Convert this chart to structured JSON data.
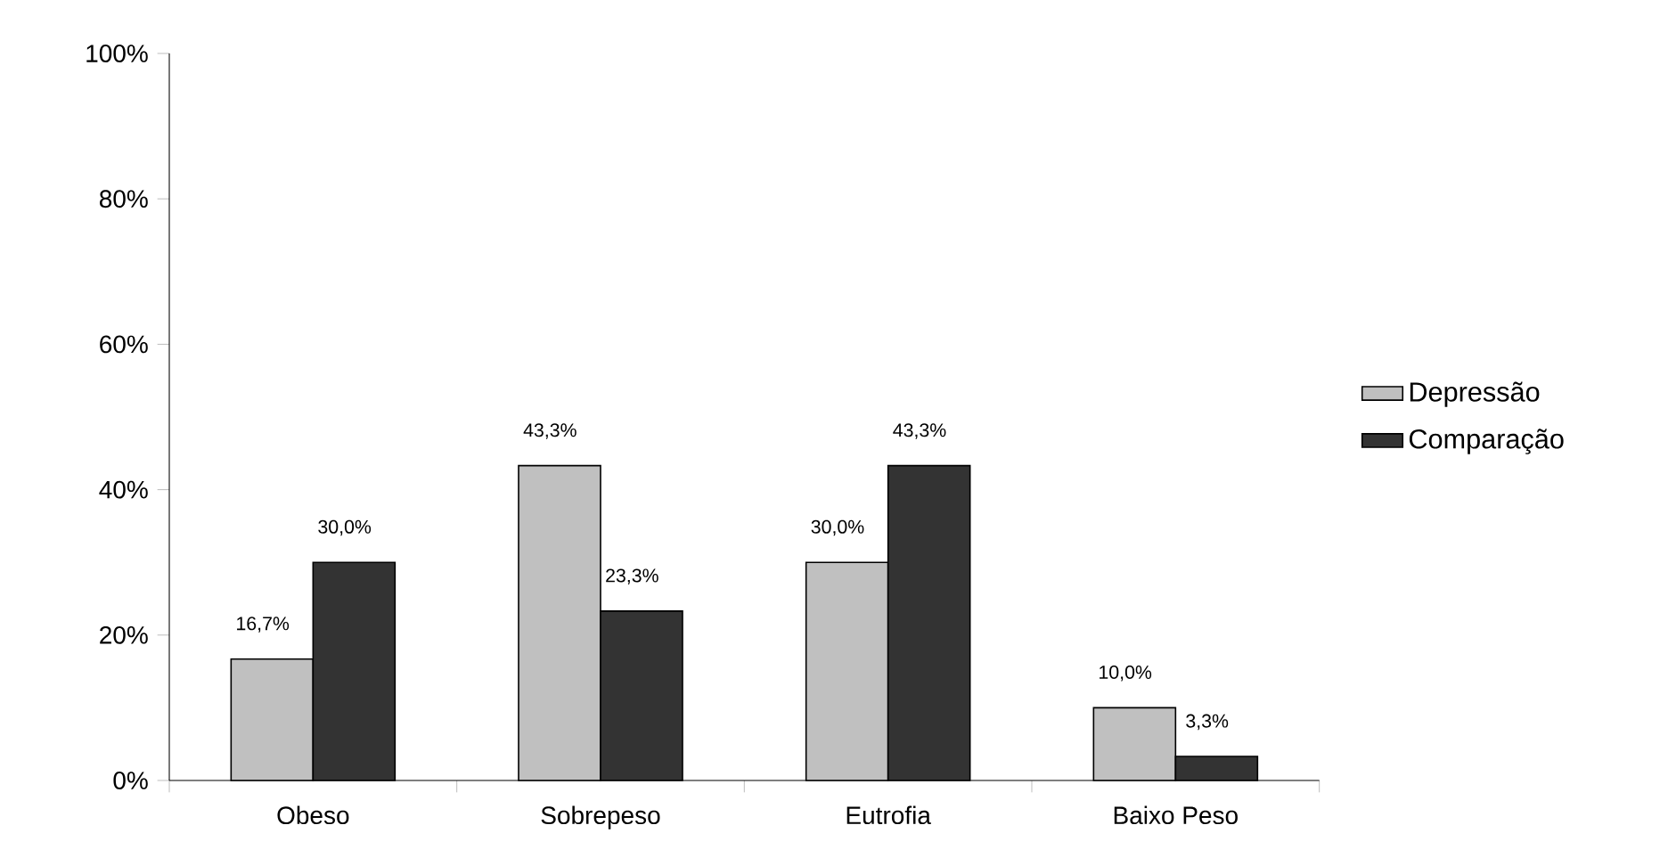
{
  "chart_data": {
    "type": "bar",
    "categories": [
      "Obeso",
      "Sobrepeso",
      "Eutrofia",
      "Baixo Peso"
    ],
    "series": [
      {
        "name": "Depressão",
        "color": "#c0c0c0",
        "values": [
          16.7,
          43.3,
          30.0,
          10.0
        ],
        "value_labels": [
          "16,7%",
          "43,3%",
          "30,0%",
          "10,0%"
        ]
      },
      {
        "name": "Comparação",
        "color": "#333333",
        "values": [
          30.0,
          23.3,
          43.3,
          3.3
        ],
        "value_labels": [
          "30,0%",
          "23,3%",
          "43,3%",
          "3,3%"
        ]
      }
    ],
    "ylim": [
      0,
      100
    ],
    "yticks": [
      {
        "value": 0,
        "label": "0%"
      },
      {
        "value": 20,
        "label": "20%"
      },
      {
        "value": 40,
        "label": "40%"
      },
      {
        "value": 60,
        "label": "60%"
      },
      {
        "value": 80,
        "label": "80%"
      },
      {
        "value": 100,
        "label": "100%"
      }
    ],
    "legend": "right",
    "grid": false
  }
}
